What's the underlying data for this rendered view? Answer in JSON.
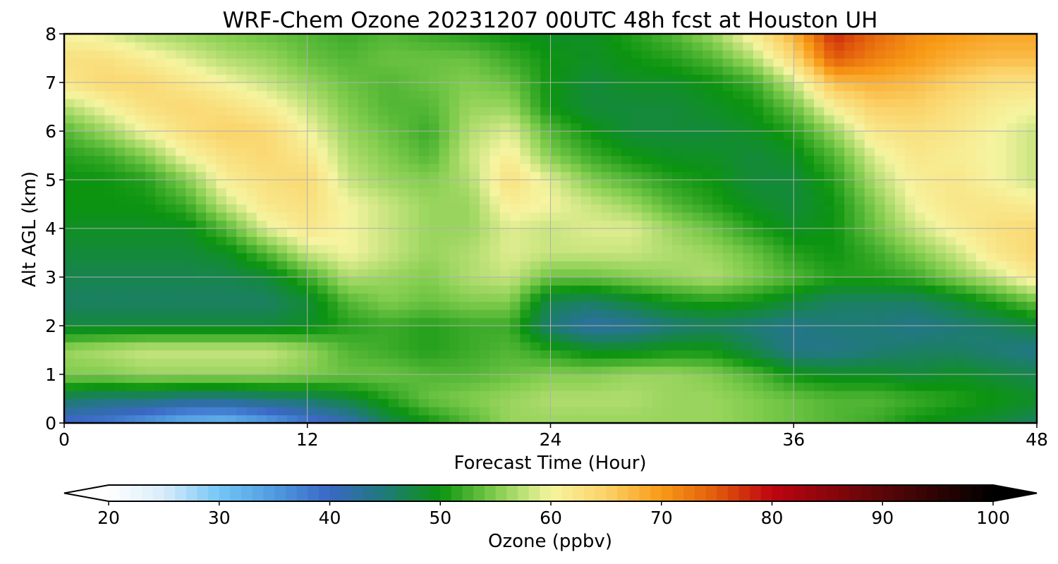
{
  "chart_data": {
    "type": "heatmap",
    "title": "WRF-Chem Ozone  20231207 00UTC 48h fcst at Houston UH",
    "xlabel": "Forecast Time (Hour)",
    "ylabel": "Alt AGL (km)",
    "xlim": [
      0,
      48
    ],
    "ylim": [
      0,
      8
    ],
    "xticks": [
      "0",
      "12",
      "24",
      "36",
      "48"
    ],
    "yticks": [
      "0",
      "1",
      "2",
      "3",
      "4",
      "5",
      "6",
      "7",
      "8"
    ],
    "grid": true,
    "x": [
      0,
      2,
      4,
      6,
      8,
      10,
      12,
      14,
      16,
      18,
      20,
      22,
      24,
      26,
      28,
      30,
      32,
      34,
      36,
      38,
      40,
      42,
      44,
      46,
      48
    ],
    "y": [
      0,
      0.5,
      1,
      1.5,
      2,
      2.5,
      3,
      3.5,
      4,
      4.5,
      5,
      5.5,
      6,
      6.5,
      7,
      7.5,
      8
    ],
    "z": [
      [
        39,
        38,
        35,
        32,
        31,
        34,
        38,
        41,
        47,
        50,
        53,
        56,
        56,
        56,
        56,
        56,
        56,
        55,
        54,
        53,
        52,
        50,
        49,
        48,
        46
      ],
      [
        46,
        45,
        45,
        44,
        44,
        45,
        46,
        48,
        51,
        54,
        55,
        56,
        57,
        57,
        57,
        56,
        56,
        55,
        54,
        53,
        53,
        52,
        51,
        50,
        49
      ],
      [
        55,
        55,
        56,
        56,
        56,
        56,
        55,
        54,
        54,
        53,
        53,
        54,
        55,
        55,
        56,
        56,
        55,
        53,
        50,
        49,
        49,
        48,
        49,
        48,
        47
      ],
      [
        56,
        57,
        58,
        58,
        58,
        58,
        56,
        53,
        52,
        51,
        52,
        53,
        51,
        49,
        49,
        50,
        50,
        47,
        44,
        44,
        45,
        46,
        46,
        45,
        44
      ],
      [
        48,
        48,
        48,
        48,
        48,
        48,
        49,
        51,
        52,
        51,
        52,
        52,
        45,
        42,
        43,
        45,
        46,
        45,
        44,
        45,
        45,
        44,
        45,
        46,
        48
      ],
      [
        46,
        46,
        46,
        46,
        46,
        46,
        48,
        53,
        55,
        54,
        55,
        55,
        47,
        46,
        48,
        50,
        51,
        50,
        48,
        46,
        46,
        46,
        48,
        51,
        54
      ],
      [
        47,
        47,
        47,
        47,
        47,
        48,
        52,
        57,
        56,
        55,
        57,
        58,
        54,
        54,
        55,
        56,
        57,
        55,
        53,
        51,
        51,
        52,
        55,
        58,
        62
      ],
      [
        48,
        48,
        48,
        48,
        49,
        53,
        58,
        60,
        58,
        56,
        57,
        59,
        58,
        58,
        58,
        57,
        56,
        54,
        51,
        50,
        52,
        55,
        58,
        62,
        64
      ],
      [
        49,
        49,
        49,
        49,
        53,
        59,
        62,
        60,
        58,
        56,
        56,
        59,
        58,
        59,
        59,
        56,
        54,
        51,
        49,
        50,
        54,
        58,
        61,
        63,
        64
      ],
      [
        50,
        50,
        50,
        52,
        58,
        62,
        63,
        60,
        58,
        56,
        56,
        61,
        60,
        58,
        56,
        53,
        51,
        49,
        48,
        50,
        55,
        60,
        62,
        62,
        61
      ],
      [
        50,
        50,
        51,
        55,
        61,
        63,
        64,
        58,
        56,
        55,
        57,
        63,
        59,
        55,
        53,
        51,
        50,
        48,
        48,
        51,
        57,
        61,
        62,
        60,
        58
      ],
      [
        51,
        52,
        55,
        60,
        63,
        64,
        62,
        57,
        55,
        53,
        58,
        61,
        55,
        52,
        50,
        49,
        49,
        48,
        49,
        53,
        59,
        62,
        61,
        60,
        58
      ],
      [
        53,
        56,
        60,
        63,
        65,
        64,
        60,
        56,
        54,
        52,
        57,
        59,
        53,
        50,
        48,
        48,
        48,
        49,
        51,
        56,
        62,
        63,
        62,
        60,
        58
      ],
      [
        57,
        60,
        63,
        64,
        63,
        61,
        58,
        55,
        53,
        53,
        56,
        56,
        50,
        48,
        48,
        48,
        49,
        50,
        54,
        61,
        65,
        65,
        63,
        61,
        60
      ],
      [
        62,
        64,
        64,
        62,
        60,
        58,
        56,
        54,
        53,
        54,
        55,
        54,
        50,
        48,
        49,
        49,
        50,
        52,
        58,
        67,
        68,
        67,
        65,
        63,
        63
      ],
      [
        63,
        63,
        61,
        59,
        57,
        56,
        54,
        53,
        54,
        54,
        54,
        52,
        50,
        49,
        50,
        51,
        53,
        57,
        64,
        75,
        72,
        70,
        68,
        67,
        67
      ],
      [
        60,
        59,
        57,
        56,
        55,
        54,
        53,
        52,
        53,
        52,
        51,
        50,
        49,
        49,
        51,
        53,
        56,
        61,
        68,
        78,
        74,
        71,
        70,
        69,
        69
      ]
    ],
    "colorbar": {
      "min": 20,
      "max": 100,
      "ticks": [
        "20",
        "30",
        "40",
        "50",
        "60",
        "70",
        "80",
        "90",
        "100"
      ],
      "label": "Ozone  (ppbv)",
      "extend": "both",
      "stops": [
        [
          20,
          "#ffffff"
        ],
        [
          25,
          "#d8ecfa"
        ],
        [
          30,
          "#74c6f5"
        ],
        [
          35,
          "#4f9be0"
        ],
        [
          40,
          "#3a67c4"
        ],
        [
          45,
          "#1f7a78"
        ],
        [
          50,
          "#0c9410"
        ],
        [
          55,
          "#82cd4e"
        ],
        [
          60,
          "#f6f4a0"
        ],
        [
          65,
          "#fbd268"
        ],
        [
          70,
          "#f89a16"
        ],
        [
          75,
          "#e1590c"
        ],
        [
          80,
          "#be0510"
        ],
        [
          90,
          "#5a0608"
        ],
        [
          100,
          "#000000"
        ]
      ]
    }
  }
}
